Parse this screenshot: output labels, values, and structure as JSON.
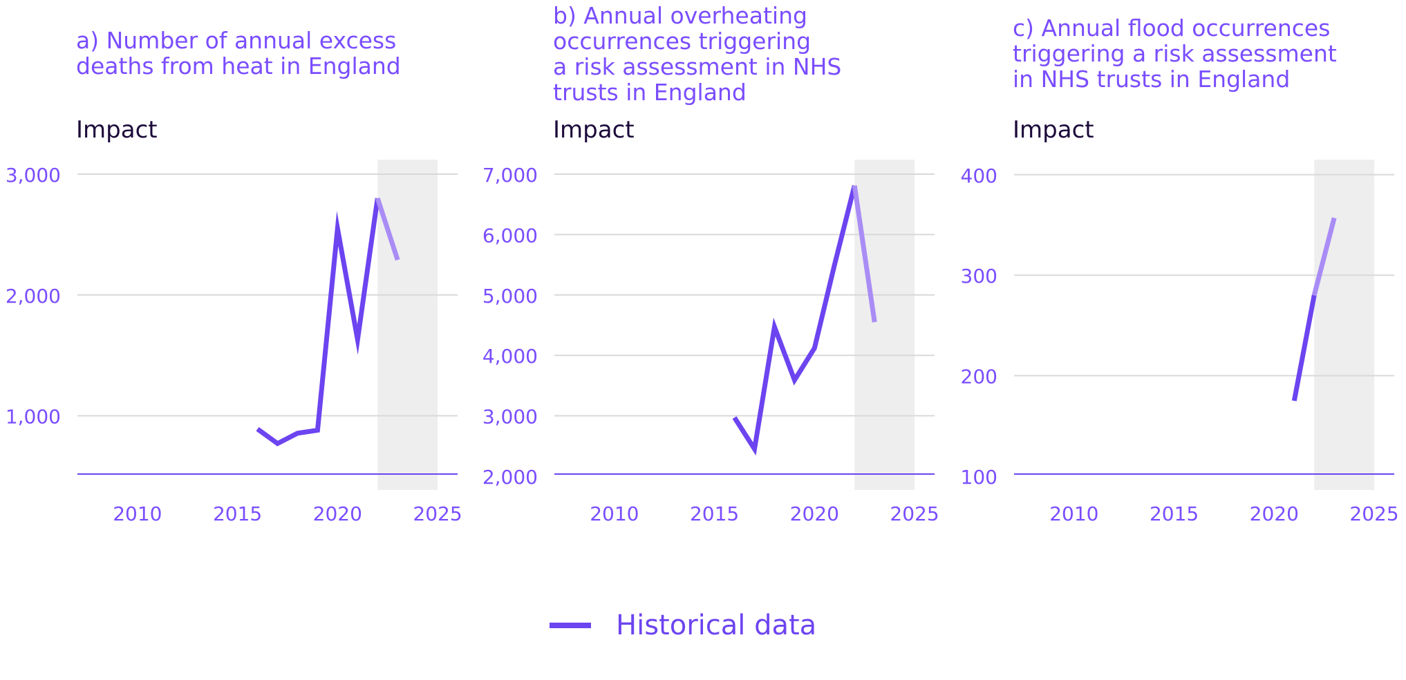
{
  "colors": {
    "line": "#6c44f0",
    "projection_line": "#a98cf5",
    "shade": "#eeeeee",
    "grid": "#d9d9d9",
    "tick_text": "#7a4dff",
    "title_text": "#7a4dff",
    "ylabel_text": "#1c0a3a"
  },
  "legend": {
    "label": "Historical data"
  },
  "chart_data": [
    {
      "type": "line",
      "title": "a) Number of annual excess\ndeaths from heat in England",
      "ylabel": "Impact",
      "xlim": [
        2007,
        2026
      ],
      "xticks": [
        2010,
        2015,
        2020,
        2025
      ],
      "xtick_labels": [
        "2010",
        "2015",
        "2020",
        "2025"
      ],
      "ylim": [
        500,
        3120
      ],
      "yticks": [
        1000,
        2000,
        3000
      ],
      "ytick_labels": [
        "1,000",
        "2,000",
        "3,000"
      ],
      "shaded_x_range": [
        2022,
        2025
      ],
      "series": [
        {
          "name": "Historical data",
          "x": [
            2016,
            2017,
            2018,
            2019,
            2020,
            2021,
            2022
          ],
          "y": [
            890,
            770,
            855,
            880,
            2550,
            1630,
            2800
          ]
        },
        {
          "x": [
            2022,
            2023
          ],
          "y": [
            2800,
            2290
          ],
          "style": "lighter"
        }
      ]
    },
    {
      "type": "line",
      "title": "b) Annual overheating\noccurrences triggering\na risk assessment in NHS\ntrusts in England",
      "ylabel": "Impact",
      "xlim": [
        2007,
        2026
      ],
      "xticks": [
        2010,
        2015,
        2020,
        2025
      ],
      "xtick_labels": [
        "2010",
        "2015",
        "2020",
        "2025"
      ],
      "ylim": [
        2000,
        7240
      ],
      "yticks": [
        2000,
        3000,
        4000,
        5000,
        6000,
        7000
      ],
      "ytick_labels": [
        "2,000",
        "3,000",
        "4,000",
        "5,000",
        "6,000",
        "7,000"
      ],
      "shaded_x_range": [
        2022,
        2025
      ],
      "series": [
        {
          "name": "Historical data",
          "x": [
            2016,
            2017,
            2018,
            2019,
            2020,
            2021,
            2022
          ],
          "y": [
            2970,
            2450,
            4470,
            3590,
            4120,
            5500,
            6810
          ]
        },
        {
          "x": [
            2022,
            2023
          ],
          "y": [
            6810,
            4550
          ],
          "style": "lighter"
        }
      ]
    },
    {
      "type": "line",
      "title": "c) Annual flood occurrences\ntriggering a risk assessment\nin NHS trusts in England",
      "ylabel": "Impact",
      "xlim": [
        2007,
        2026
      ],
      "xticks": [
        2010,
        2015,
        2020,
        2025
      ],
      "xtick_labels": [
        "2010",
        "2015",
        "2020",
        "2025"
      ],
      "ylim": [
        100,
        415
      ],
      "yticks": [
        100,
        200,
        300,
        400
      ],
      "ytick_labels": [
        "100",
        "200",
        "300",
        "400"
      ],
      "shaded_x_range": [
        2022,
        2025
      ],
      "series": [
        {
          "name": "Historical data",
          "x": [
            2021,
            2022
          ],
          "y": [
            175,
            280
          ]
        },
        {
          "x": [
            2022,
            2023
          ],
          "y": [
            280,
            357
          ],
          "style": "lighter"
        }
      ]
    }
  ]
}
